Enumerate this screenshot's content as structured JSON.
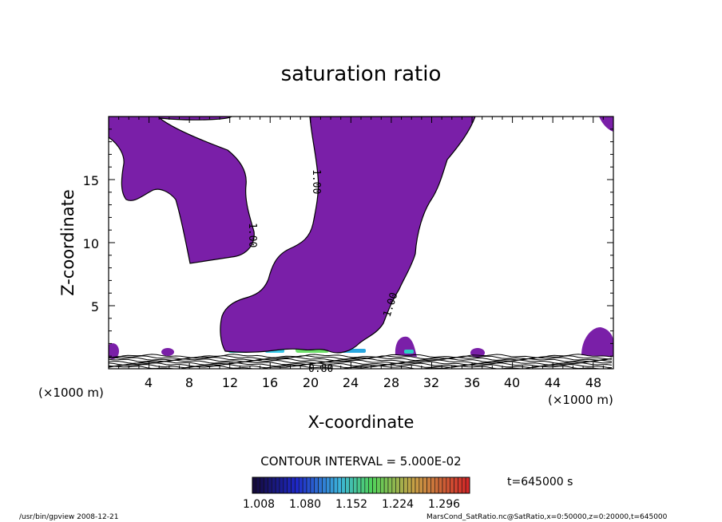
{
  "chart_data": {
    "type": "contour",
    "title": "saturation ratio",
    "xlabel": "X-coordinate",
    "ylabel": "Z-coordinate",
    "x_units": "(×1000 m)",
    "z_units": "(×1000 m)",
    "xlim": [
      0,
      50
    ],
    "ylim": [
      0,
      20
    ],
    "x_ticks": [
      "4",
      "8",
      "12",
      "16",
      "20",
      "24",
      "28",
      "32",
      "36",
      "40",
      "44",
      "48"
    ],
    "y_ticks": [
      "5",
      "10",
      "15"
    ],
    "contour_labels": [
      "1.00",
      "1.00",
      "1.00",
      "0.80"
    ],
    "contour_interval_text": "CONTOUR INTERVAL = 5.000E-02",
    "colorbar_ticks": [
      "1.008",
      "1.080",
      "1.152",
      "1.224",
      "1.296"
    ],
    "colorbar_range": [
      1.008,
      1.296
    ],
    "time_label": "t=645000 s",
    "fill_color": "#7a1fa8",
    "footer_left": "/usr/bin/gpview   2008-12-21",
    "footer_right": "MarsCond_SatRatio.nc@SatRatio,x=0:50000,z=0:20000,t=645000"
  }
}
